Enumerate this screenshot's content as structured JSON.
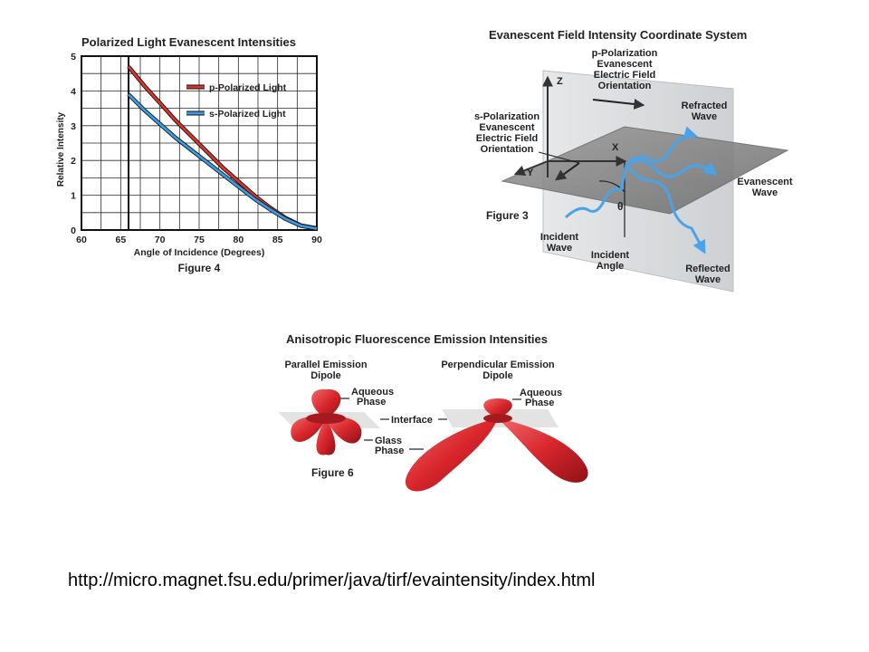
{
  "figure4": {
    "title": "Polarized Light Evanescent Intensities",
    "caption": "Figure 4",
    "chart_data": {
      "type": "line",
      "title": "Polarized Light Evanescent Intensities",
      "xlabel": "Angle of Incidence (Degrees)",
      "ylabel": "Relative Intensity",
      "xlim": [
        60,
        90
      ],
      "ylim": [
        0,
        5
      ],
      "xticks": [
        "60",
        "65",
        "70",
        "75",
        "80",
        "85",
        "90"
      ],
      "yticks": [
        "0",
        "1",
        "2",
        "3",
        "4",
        "5"
      ],
      "grid": true,
      "legend": "top-right",
      "critical_angle": 66,
      "series": [
        {
          "name": "p-Polarized Light",
          "color": "#d9342b",
          "x": [
            66,
            68,
            70,
            72,
            74,
            76,
            78,
            80,
            82,
            84,
            86,
            88,
            90
          ],
          "y": [
            4.7,
            4.15,
            3.65,
            3.15,
            2.7,
            2.25,
            1.8,
            1.4,
            1.0,
            0.65,
            0.35,
            0.13,
            0.05
          ]
        },
        {
          "name": "s-Polarized Light",
          "color": "#3a9be0",
          "x": [
            66,
            68,
            70,
            72,
            74,
            76,
            78,
            80,
            82,
            84,
            86,
            88,
            90
          ],
          "y": [
            3.9,
            3.45,
            3.05,
            2.65,
            2.3,
            1.95,
            1.6,
            1.25,
            0.9,
            0.6,
            0.32,
            0.12,
            0.04
          ]
        }
      ]
    }
  },
  "figure3": {
    "title": "Evanescent Field Intensity Coordinate System",
    "caption": "Figure 3",
    "labels": {
      "p_pol": [
        "p-Polarization",
        "Evanescent",
        "Electric Field",
        "Orientation"
      ],
      "s_pol": [
        "s-Polarization",
        "Evanescent",
        "Electric Field",
        "Orientation"
      ],
      "z": "Z",
      "x": "X",
      "y": "Y",
      "theta": "θ",
      "refracted": [
        "Refracted",
        "Wave"
      ],
      "evanescent": [
        "Evanescent",
        "Wave"
      ],
      "incident": [
        "Incident",
        "Wave"
      ],
      "incident_angle": [
        "Incident",
        "Angle"
      ],
      "reflected": [
        "Reflected",
        "Wave"
      ]
    }
  },
  "figure6": {
    "title": "Anisotropic Fluorescence Emission Intensities",
    "caption": "Figure 6",
    "labels": {
      "parallel": [
        "Parallel Emission",
        "Dipole"
      ],
      "perpendicular": [
        "Perpendicular Emission",
        "Dipole"
      ],
      "aqueous_left": [
        "Aqueous",
        "Phase"
      ],
      "aqueous_right": [
        "Aqueous",
        "Phase"
      ],
      "interface": "Interface",
      "glass": [
        "Glass",
        "Phase"
      ]
    }
  },
  "source_url": "http://micro.magnet.fsu.edu/primer/java/tirf/evaintensity/index.html",
  "colors": {
    "p": "#d9342b",
    "s": "#3a9be0",
    "lobe": "#d8262c",
    "plane": "#8f8f8f"
  }
}
